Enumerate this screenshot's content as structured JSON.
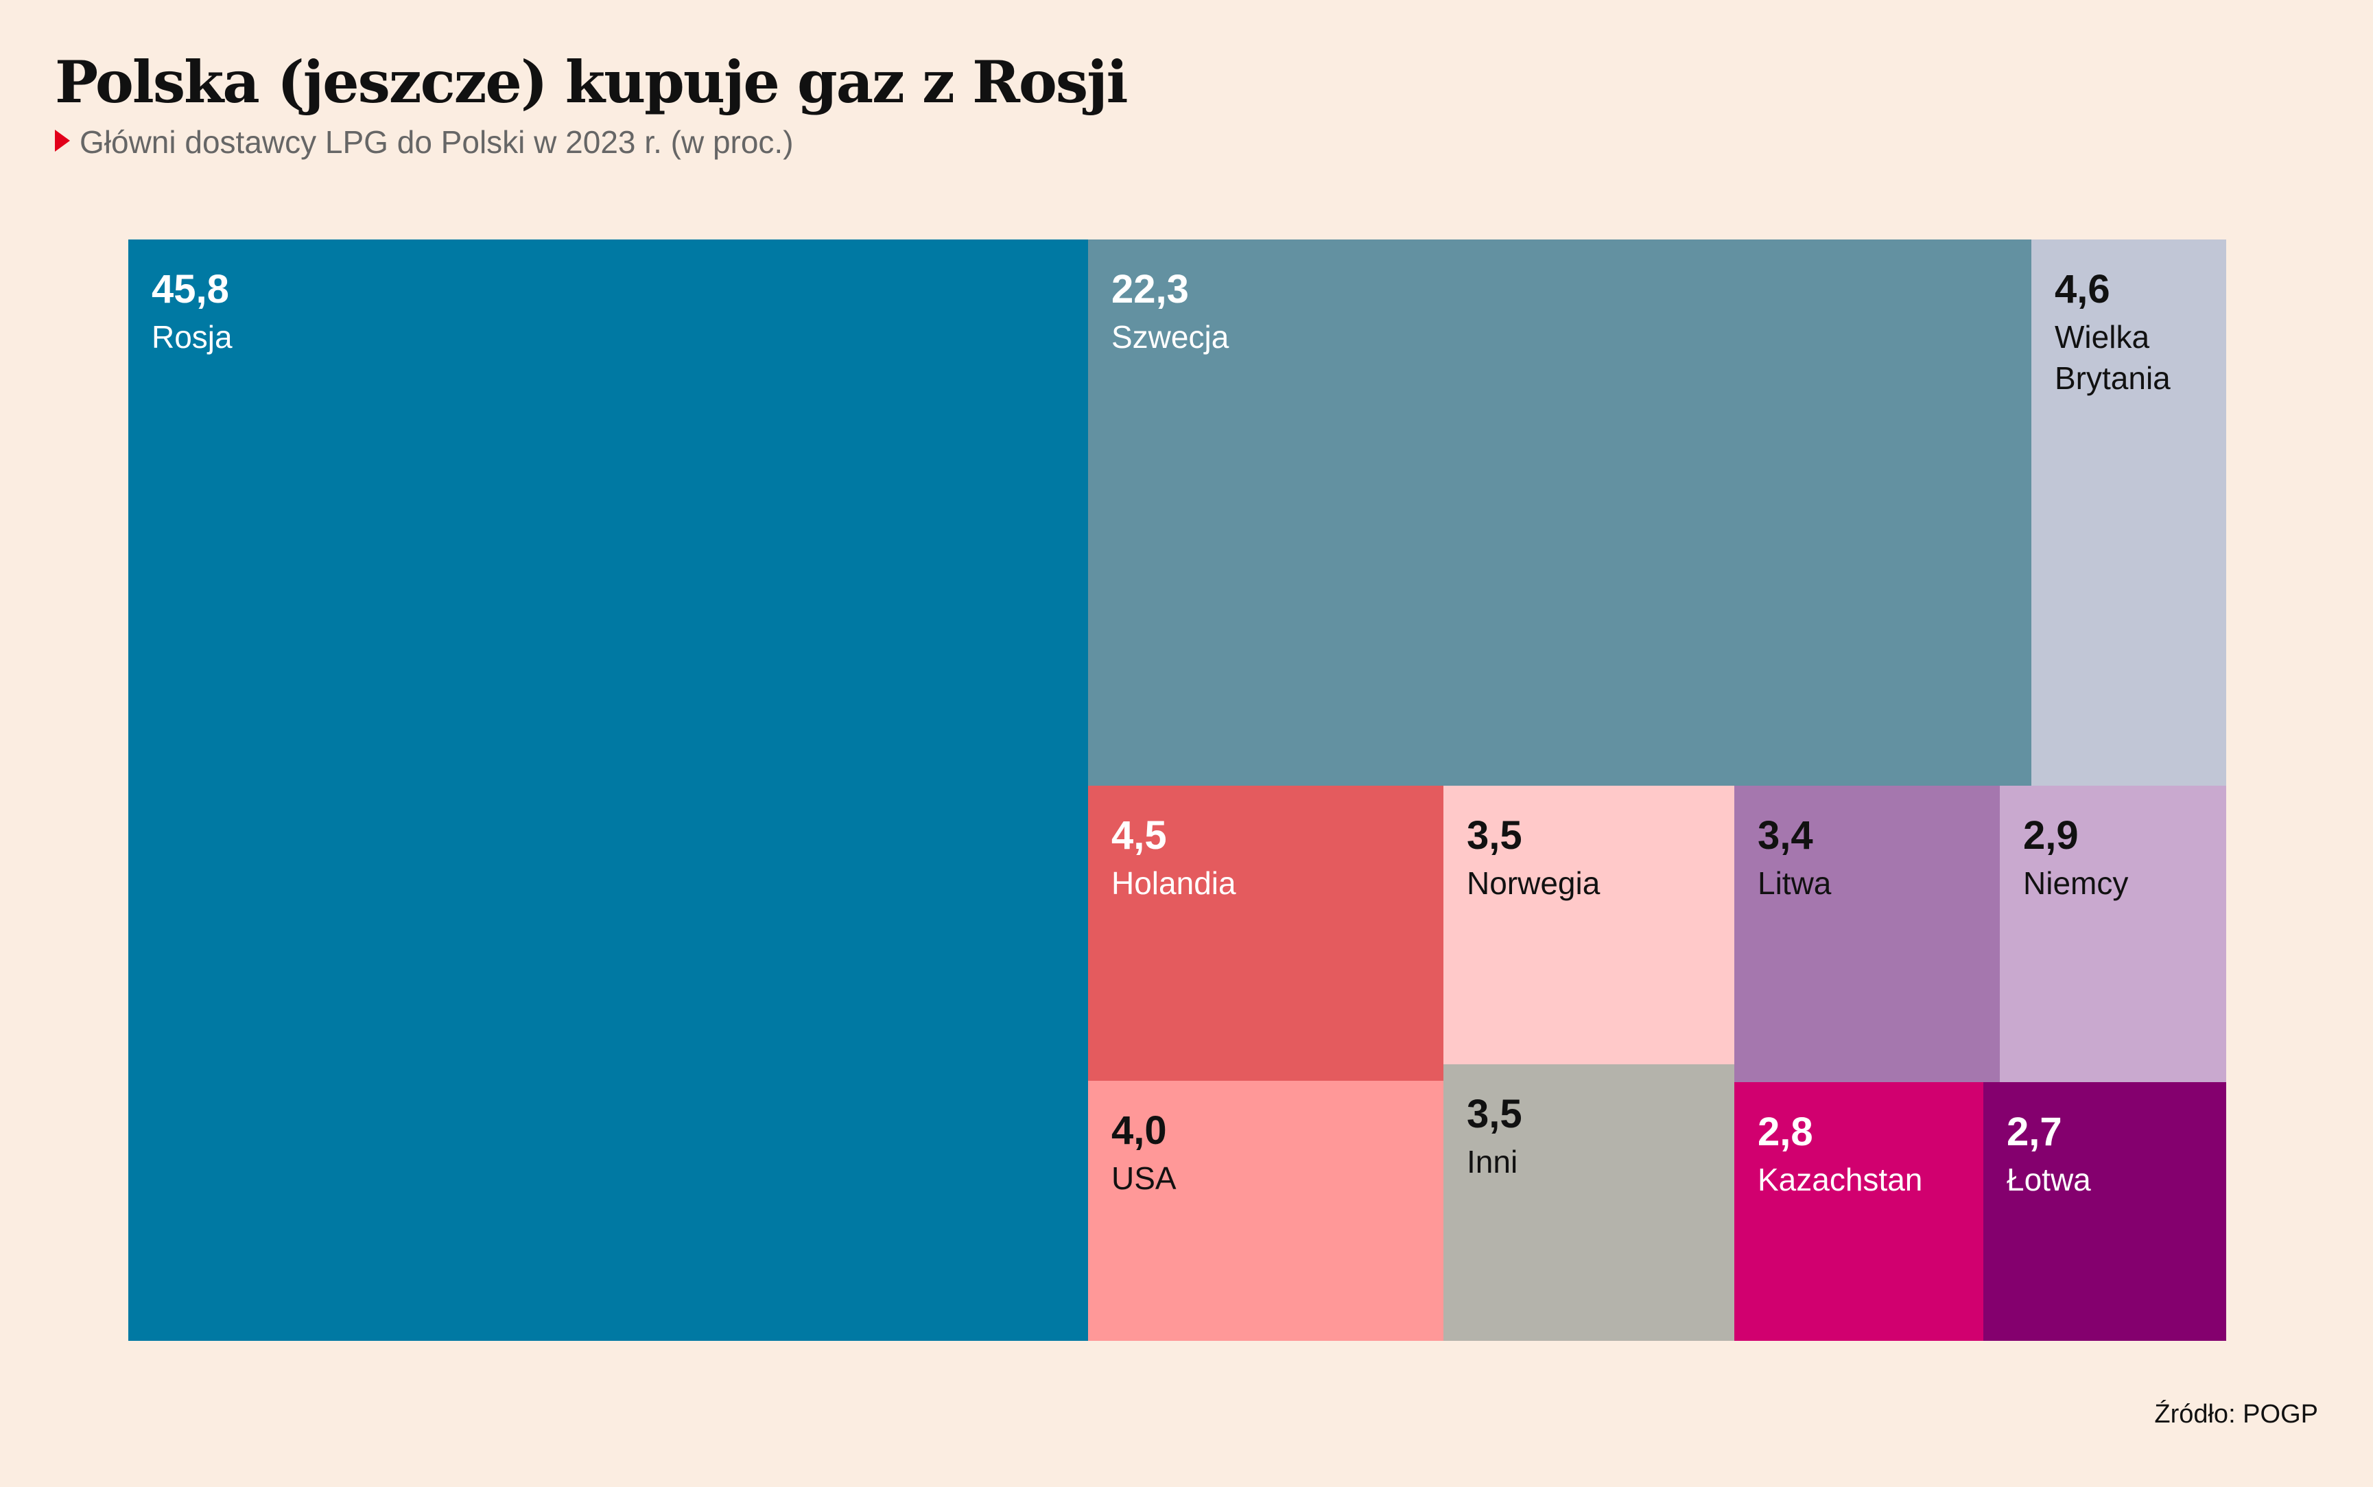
{
  "header": {
    "title": "Polska (jeszcze) kupuje gaz z Rosji",
    "subtitle": "Główni dostawcy LPG do Polski w 2023 r. (w proc.)"
  },
  "footer": {
    "source": "Źródło: POGP"
  },
  "chart_data": {
    "type": "treemap",
    "title": "Polska (jeszcze) kupuje gaz z Rosji",
    "subtitle": "Główni dostawcy LPG do Polski w 2023 r. (w proc.)",
    "unit": "%",
    "items": [
      {
        "name": "Rosja",
        "value": 45.8,
        "label": "45,8",
        "color": "#0079a3",
        "text_color": "#ffffff"
      },
      {
        "name": "Szwecja",
        "value": 22.3,
        "label": "22,3",
        "color": "#6391a1",
        "text_color": "#ffffff"
      },
      {
        "name": "Wielka Brytania",
        "value": 4.6,
        "label": "4,6",
        "color": "#c1c6d6",
        "text_color": "#111111"
      },
      {
        "name": "Holandia",
        "value": 4.5,
        "label": "4,5",
        "color": "#e45b5e",
        "text_color": "#ffffff"
      },
      {
        "name": "Norwegia",
        "value": 3.5,
        "label": "3,5",
        "color": "#ffc9c9",
        "text_color": "#111111"
      },
      {
        "name": "Litwa",
        "value": 3.4,
        "label": "3,4",
        "color": "#a577ae",
        "text_color": "#111111"
      },
      {
        "name": "Niemcy",
        "value": 2.9,
        "label": "2,9",
        "color": "#c9a9cf",
        "text_color": "#111111"
      },
      {
        "name": "USA",
        "value": 4.0,
        "label": "4,0",
        "color": "#ff9898",
        "text_color": "#111111"
      },
      {
        "name": "Inni",
        "value": 3.5,
        "label": "3,5",
        "color": "#b4b3ab",
        "text_color": "#111111"
      },
      {
        "name": "Kazachstan",
        "value": 2.8,
        "label": "2,8",
        "color": "#d1006f",
        "text_color": "#ffffff"
      },
      {
        "name": "Łotwa",
        "value": 2.7,
        "label": "2,7",
        "color": "#84006e",
        "text_color": "#ffffff"
      }
    ]
  }
}
